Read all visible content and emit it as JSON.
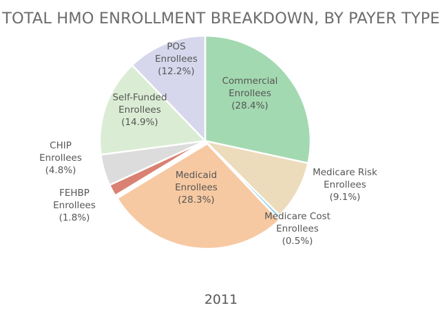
{
  "chart_data": {
    "type": "pie",
    "title": "TOTAL HMO ENROLLMENT BREAKDOWN, BY PAYER TYPE",
    "caption": "2011",
    "slices": [
      {
        "id": "commercial",
        "lines": [
          "Commercial",
          "Enrollees",
          "(28.4%)"
        ],
        "value": 28.4,
        "color": "#a3d9b1"
      },
      {
        "id": "medicare-risk",
        "lines": [
          "Medicare Risk",
          "Enrollees",
          "(9.1%)"
        ],
        "value": 9.1,
        "color": "#ecdcbc"
      },
      {
        "id": "medicare-cost",
        "lines": [
          "Medicare Cost",
          "Enrollees",
          "(0.5%)"
        ],
        "value": 0.5,
        "color": "#8fd0e6"
      },
      {
        "id": "medicaid",
        "lines": [
          "Medicaid",
          "Enrollees",
          "(28.3%)"
        ],
        "value": 28.3,
        "color": "#f7c9a2"
      },
      {
        "id": "fehbp",
        "lines": [
          "FEHBP",
          "Enrollees",
          "(1.8%)"
        ],
        "value": 1.8,
        "color": "#d98173"
      },
      {
        "id": "chip",
        "lines": [
          "CHIP",
          "Enrollees",
          "(4.8%)"
        ],
        "value": 4.8,
        "color": "#dcdcdc"
      },
      {
        "id": "self-funded",
        "lines": [
          "Self-Funded",
          "Enrollees",
          "(14.9%)"
        ],
        "value": 14.9,
        "color": "#daedd4"
      },
      {
        "id": "pos",
        "lines": [
          "POS",
          "Enrollees",
          "(12.2%)"
        ],
        "value": 12.2,
        "color": "#d6d7ec"
      }
    ]
  }
}
